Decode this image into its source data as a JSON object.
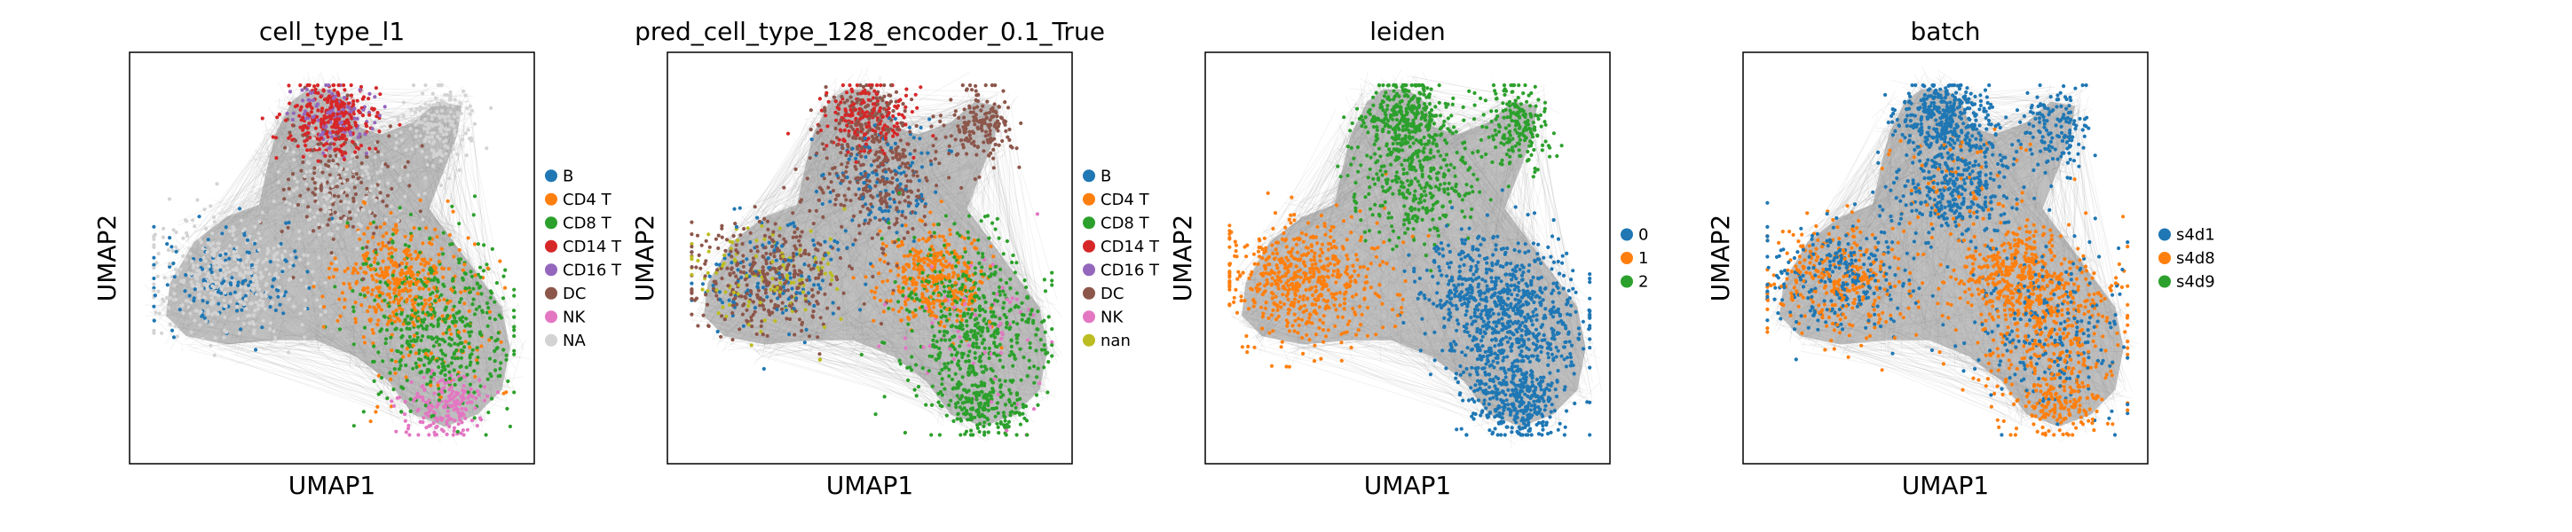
{
  "chart_data": [
    {
      "type": "scatter",
      "title": "cell_type_l1",
      "xlabel": "UMAP1",
      "ylabel": "UMAP2",
      "grid": false,
      "legend": "right",
      "legend_entries": [
        {
          "name": "B",
          "color": "#1f77b4"
        },
        {
          "name": "CD4 T",
          "color": "#ff7f0e"
        },
        {
          "name": "CD8 T",
          "color": "#2ca02c"
        },
        {
          "name": "CD14 T",
          "color": "#d62728"
        },
        {
          "name": "CD16 T",
          "color": "#9467bd"
        },
        {
          "name": "DC",
          "color": "#8c564b"
        },
        {
          "name": "NK",
          "color": "#e377c2"
        },
        {
          "name": "NA",
          "color": "#d3d3d3"
        }
      ]
    },
    {
      "type": "scatter",
      "title": "pred_cell_type_128_encoder_0.1_True",
      "xlabel": "UMAP1",
      "ylabel": "UMAP2",
      "grid": false,
      "legend": "right",
      "legend_entries": [
        {
          "name": "B",
          "color": "#1f77b4"
        },
        {
          "name": "CD4 T",
          "color": "#ff7f0e"
        },
        {
          "name": "CD8 T",
          "color": "#2ca02c"
        },
        {
          "name": "CD14 T",
          "color": "#d62728"
        },
        {
          "name": "CD16 T",
          "color": "#9467bd"
        },
        {
          "name": "DC",
          "color": "#8c564b"
        },
        {
          "name": "NK",
          "color": "#e377c2"
        },
        {
          "name": "nan",
          "color": "#bcbd22"
        }
      ]
    },
    {
      "type": "scatter",
      "title": "leiden",
      "xlabel": "UMAP1",
      "ylabel": "UMAP2",
      "grid": false,
      "legend": "right",
      "legend_entries": [
        {
          "name": "0",
          "color": "#1f77b4"
        },
        {
          "name": "1",
          "color": "#ff7f0e"
        },
        {
          "name": "2",
          "color": "#2ca02c"
        }
      ]
    },
    {
      "type": "scatter",
      "title": "batch",
      "xlabel": "UMAP1",
      "ylabel": "UMAP2",
      "grid": false,
      "legend": "right",
      "legend_entries": [
        {
          "name": "s4d1",
          "color": "#1f77b4"
        },
        {
          "name": "s4d8",
          "color": "#ff7f0e"
        },
        {
          "name": "s4d9",
          "color": "#2ca02c"
        }
      ]
    }
  ],
  "edge_color": "#808080"
}
